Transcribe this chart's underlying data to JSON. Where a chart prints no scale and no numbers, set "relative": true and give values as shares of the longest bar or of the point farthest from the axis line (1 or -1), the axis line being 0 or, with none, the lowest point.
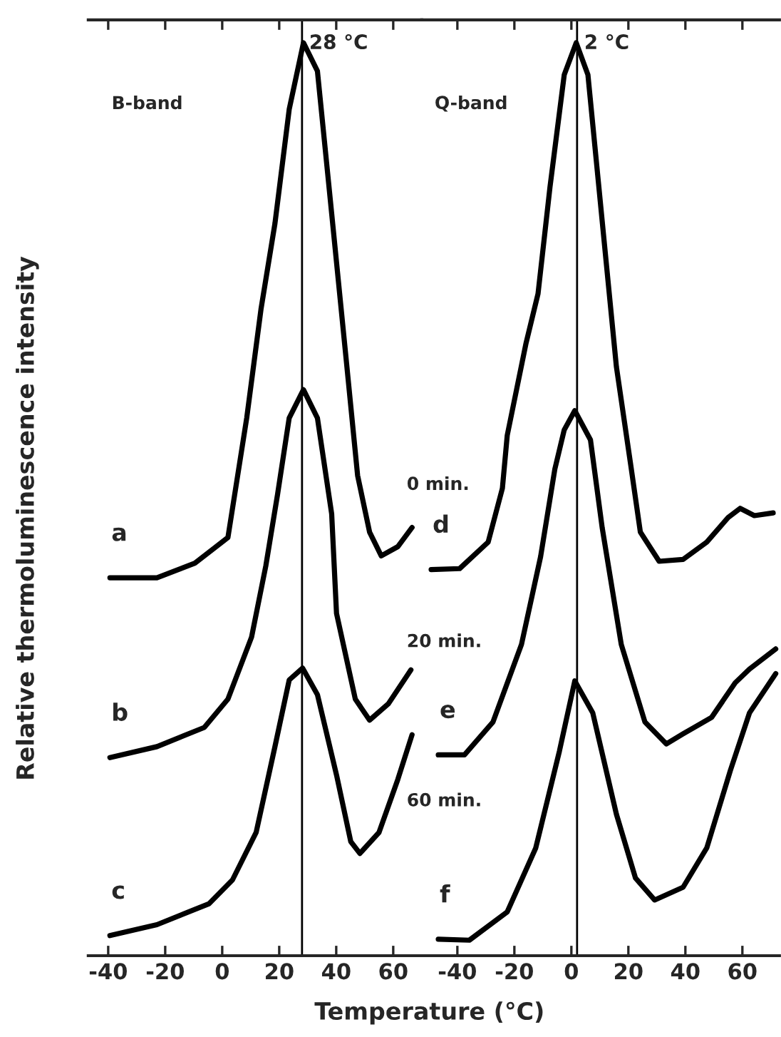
{
  "chart_data": [
    {
      "type": "line",
      "relative": true,
      "tick_labels": "x",
      "xlabel": "Temperature (°C)",
      "ylabel": "Relative thermoluminescence intensity",
      "xlim": [
        -47,
        70
      ],
      "xticks": [
        -40,
        -20,
        0,
        20,
        40,
        60
      ],
      "ref_lines": [
        {
          "axis": "x",
          "value": 28,
          "label": "28 °C",
          "color": "#000000"
        }
      ],
      "annotations": [
        "B-band",
        "0 min.",
        "20 min.",
        "60 min."
      ],
      "series": [
        {
          "name": "a",
          "color": "#000000",
          "x": [
            -39.4,
            -22.9,
            -9.6,
            2,
            8.6,
            13.6,
            18.5,
            23.5,
            28.5,
            33.4,
            38.4,
            43.4,
            47.5,
            51.7,
            55.8,
            61.6,
            66.6
          ],
          "values": [
            0.414,
            0.414,
            0.43,
            0.458,
            0.589,
            0.708,
            0.802,
            0.927,
            1.0,
            0.969,
            0.813,
            0.656,
            0.526,
            0.464,
            0.438,
            0.448,
            0.469
          ]
        },
        {
          "name": "b",
          "color": "#000000",
          "x": [
            -39.4,
            -22.9,
            -6.3,
            2,
            10.3,
            15.3,
            19.4,
            23.5,
            28.5,
            33.4,
            38.4,
            40.1,
            46.7,
            51.7,
            58.3,
            66.2
          ],
          "values": [
            0.217,
            0.229,
            0.25,
            0.281,
            0.349,
            0.427,
            0.505,
            0.589,
            0.62,
            0.589,
            0.484,
            0.375,
            0.281,
            0.258,
            0.276,
            0.313
          ]
        },
        {
          "name": "c",
          "color": "#000000",
          "x": [
            -39.4,
            -22.9,
            -4.6,
            3.6,
            11.9,
            18.5,
            23.5,
            28.2,
            33.4,
            40.1,
            45.1,
            48.3,
            55,
            61.6,
            66.6
          ],
          "values": [
            0.022,
            0.034,
            0.057,
            0.083,
            0.135,
            0.229,
            0.302,
            0.315,
            0.286,
            0.198,
            0.125,
            0.112,
            0.135,
            0.193,
            0.242
          ]
        }
      ]
    },
    {
      "type": "line",
      "relative": true,
      "tick_labels": "x",
      "xlim": [
        -52.5,
        73
      ],
      "xticks": [
        -40,
        -20,
        0,
        20,
        40,
        60
      ],
      "ref_lines": [
        {
          "axis": "x",
          "value": 2,
          "label": "2 °C",
          "color": "#000000"
        }
      ],
      "annotations": [
        "Q-band"
      ],
      "series": [
        {
          "name": "d",
          "color": "#000000",
          "x": [
            -49.2,
            -39.2,
            -29.2,
            -24.2,
            -22.5,
            -15.9,
            -11.7,
            -7.5,
            -2.5,
            1.7,
            5.8,
            10.8,
            15.8,
            20.8,
            24.2,
            30.8,
            39.2,
            47.5,
            55,
            59.2,
            64.2,
            70.8
          ],
          "values": [
            0.423,
            0.424,
            0.453,
            0.512,
            0.57,
            0.671,
            0.725,
            0.842,
            0.965,
            1.0,
            0.965,
            0.805,
            0.645,
            0.538,
            0.464,
            0.432,
            0.434,
            0.453,
            0.48,
            0.49,
            0.482,
            0.485
          ]
        },
        {
          "name": "e",
          "color": "#000000",
          "x": [
            -46.7,
            -37.5,
            -27.5,
            -17.5,
            -10.8,
            -5.8,
            -2.5,
            1.2,
            6.7,
            10.8,
            17.5,
            25.8,
            33.3,
            39.2,
            49.2,
            57.5,
            62.5,
            71.7
          ],
          "values": [
            0.22,
            0.22,
            0.256,
            0.341,
            0.437,
            0.533,
            0.576,
            0.597,
            0.565,
            0.469,
            0.341,
            0.256,
            0.232,
            0.243,
            0.261,
            0.299,
            0.314,
            0.336
          ]
        },
        {
          "name": "f",
          "color": "#000000",
          "x": [
            -46.7,
            -35.8,
            -22.5,
            -12.5,
            -4.2,
            1.2,
            7.5,
            15.8,
            22.5,
            29.2,
            39.2,
            47.5,
            55.8,
            62.5,
            71.7
          ],
          "values": [
            0.018,
            0.017,
            0.048,
            0.118,
            0.224,
            0.301,
            0.266,
            0.155,
            0.085,
            0.061,
            0.075,
            0.118,
            0.203,
            0.266,
            0.309
          ]
        }
      ]
    }
  ]
}
